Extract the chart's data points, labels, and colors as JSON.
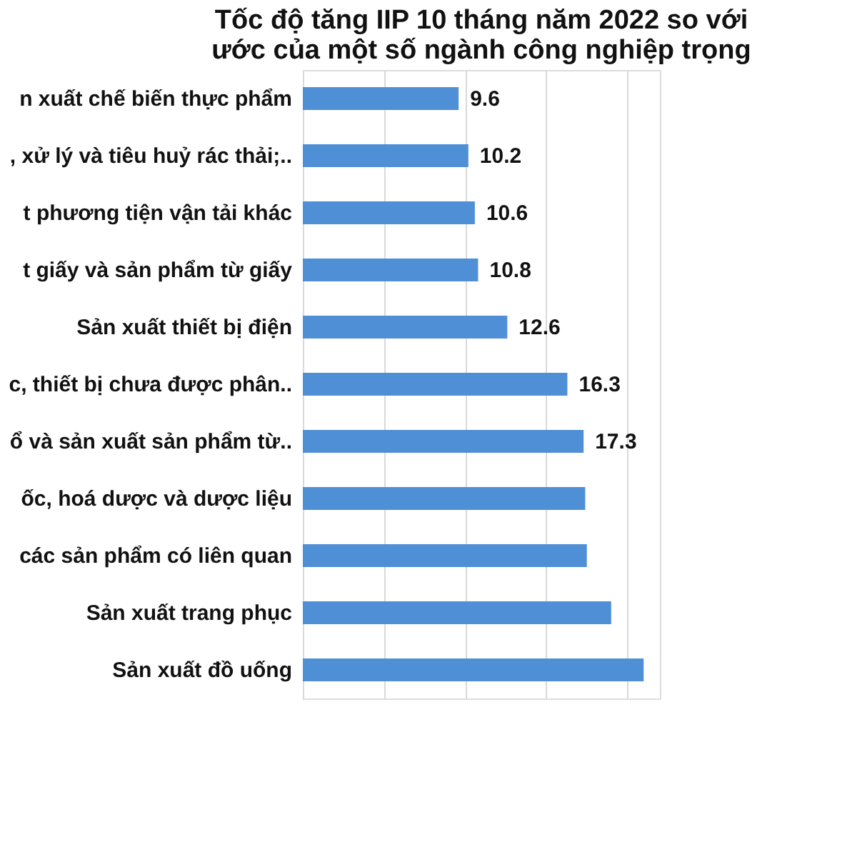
{
  "chart_data": {
    "type": "bar",
    "orientation": "horizontal",
    "title": [
      "Tốc độ tăng IIP 10 tháng năm 2022 so với",
      "ước của một số ngành công nghiệp trọng"
    ],
    "categories": [
      "n xuất chế biến thực phẩm",
      ", xử lý và tiêu huỷ rác thải;..",
      "t phương tiện vận tải khác",
      "t giấy và sản phẩm từ giấy",
      "Sản xuất thiết bị điện",
      "c, thiết bị chưa được phân..",
      "ổ và sản xuất sản phẩm từ..",
      "ốc, hoá dược và dược liệu",
      "các sản phẩm có liên quan",
      "Sản xuất trang phục",
      "Sản xuất đồ uống"
    ],
    "values": [
      9.6,
      10.2,
      10.6,
      10.8,
      12.6,
      16.3,
      17.3,
      17.4,
      17.5,
      19.0,
      21.0
    ],
    "value_labels": [
      "9.6",
      "10.2",
      "10.6",
      "10.8",
      "12.6",
      "16.3",
      "17.3",
      null,
      null,
      null,
      null
    ],
    "color": "#4f8fd6",
    "xlim": [
      0,
      22
    ],
    "xticks": [
      {
        "value": 5,
        "label": null
      },
      {
        "value": 10,
        "label": null
      },
      {
        "value": 15,
        "label": null
      },
      {
        "value": 20,
        "label": null
      }
    ],
    "grid": "x",
    "tick_labels": "y"
  }
}
